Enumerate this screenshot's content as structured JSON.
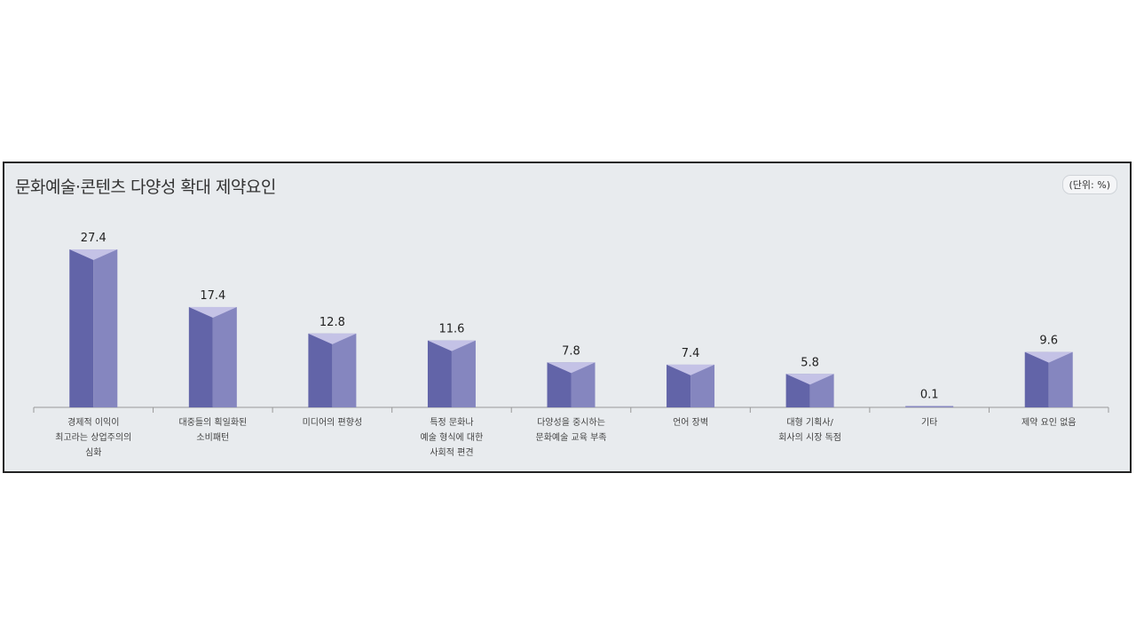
{
  "chart_data": {
    "type": "bar",
    "title": "문화예술·콘텐츠 다양성 확대 제약요인",
    "unit_label": "(단위: %)",
    "categories": [
      [
        "경제적 이익이",
        "최고라는 상업주의의",
        "심화"
      ],
      [
        "대중들의 획일화된",
        "소비패턴"
      ],
      [
        "미디어의 편향성"
      ],
      [
        "특정 문화나",
        "예술 형식에 대한",
        "사회적 편견"
      ],
      [
        "다양성을 중시하는",
        "문화예술 교육 부족"
      ],
      [
        "언어 장벽"
      ],
      [
        "대형 기획사/",
        "회사의 시장 독점"
      ],
      [
        "기타"
      ],
      [
        "제약 요인 없음"
      ]
    ],
    "values": [
      27.4,
      17.4,
      12.8,
      11.6,
      7.8,
      7.4,
      5.8,
      0.1,
      9.6
    ],
    "value_labels": [
      "27.4",
      "17.4",
      "12.8",
      "11.6",
      "7.8",
      "7.4",
      "5.8",
      "0.1",
      "9.6"
    ],
    "ylim": [
      0,
      27.4
    ],
    "grid": false,
    "legend": "none",
    "colors": {
      "bar_left": "#6264a8",
      "bar_right": "#8586bf",
      "bar_top": "#c4c2e6",
      "axis": "#999999"
    }
  }
}
